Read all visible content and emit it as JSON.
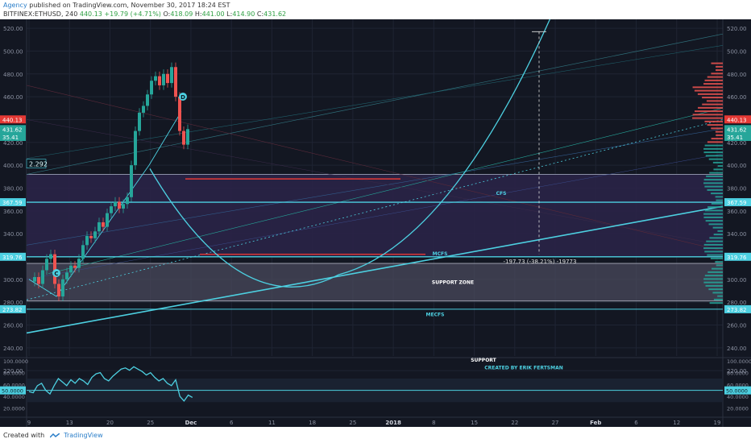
{
  "header": {
    "author": "Agency",
    "published": "published on TradingView.com, November 30, 2017 18:24 EST",
    "symbol": "BITFINEX:ETHUSD, 240",
    "last": "440.13",
    "change": "+19.79 (+4.71%)",
    "open_label": "O:",
    "open": "418.09",
    "high_label": "H:",
    "high": "441.00",
    "low_label": "L:",
    "low": "414.90",
    "close_label": "C:",
    "close": "431.62"
  },
  "footer": {
    "created_with": "Created with",
    "brand": "TradingView"
  },
  "colors": {
    "background": "#131722",
    "cyan": "#4dd0e1",
    "red": "#e53935",
    "green": "#26a69a",
    "purple_zone": "#2a2447",
    "support_zone": "#4a4a5c"
  },
  "chart_data": {
    "type": "candlestick",
    "symbol": "BITFINEX:ETHUSD",
    "interval": "240",
    "ylim": [
      230,
      525
    ],
    "y_ticks": [
      "520.00",
      "500.00",
      "480.00",
      "460.00",
      "440.00",
      "420.00",
      "400.00",
      "380.00",
      "360.00",
      "340.00",
      "320.00",
      "300.00",
      "280.00",
      "260.00",
      "240.00",
      "220.00"
    ],
    "x_ticks": [
      "9",
      "13",
      "20",
      "25",
      "Dec",
      "6",
      "11",
      "18",
      "25",
      "2018",
      "8",
      "15",
      "22",
      "27",
      "Feb",
      "6",
      "12",
      "19"
    ],
    "price_path": [
      [
        0,
        298
      ],
      [
        2,
        302
      ],
      [
        4,
        296
      ],
      [
        6,
        308
      ],
      [
        8,
        318
      ],
      [
        10,
        322
      ],
      [
        12,
        296
      ],
      [
        14,
        285
      ],
      [
        16,
        300
      ],
      [
        18,
        306
      ],
      [
        20,
        312
      ],
      [
        22,
        310
      ],
      [
        24,
        318
      ],
      [
        26,
        330
      ],
      [
        28,
        338
      ],
      [
        30,
        336
      ],
      [
        32,
        342
      ],
      [
        34,
        350
      ],
      [
        36,
        346
      ],
      [
        38,
        358
      ],
      [
        40,
        364
      ],
      [
        42,
        368
      ],
      [
        44,
        362
      ],
      [
        46,
        366
      ],
      [
        48,
        372
      ],
      [
        50,
        400
      ],
      [
        52,
        430
      ],
      [
        54,
        446
      ],
      [
        56,
        452
      ],
      [
        58,
        462
      ],
      [
        60,
        474
      ],
      [
        62,
        478
      ],
      [
        64,
        470
      ],
      [
        66,
        480
      ],
      [
        68,
        472
      ],
      [
        70,
        486
      ],
      [
        72,
        460
      ],
      [
        74,
        430
      ],
      [
        76,
        418
      ],
      [
        78,
        431.62
      ]
    ],
    "price_labels": [
      {
        "value": "440.13",
        "color": "#e53935",
        "y": 440.13
      },
      {
        "value": "431.62",
        "color": "#26a69a",
        "y": 431.62
      },
      {
        "value": "35.41",
        "color": "#26a69a",
        "y": 424.8
      },
      {
        "value": "367.59",
        "color": "#4dd0e1",
        "y": 367.59
      },
      {
        "value": "319.76",
        "color": "#4dd0e1",
        "y": 319.76
      },
      {
        "value": "273.82",
        "color": "#4dd0e1",
        "y": 273.82
      }
    ],
    "level_labels": [
      {
        "text": "CFS",
        "y": 376
      },
      {
        "text": "MCFS",
        "y": 323
      },
      {
        "text": "SUPPORT ZONE",
        "y": 298
      },
      {
        "text": "MECFS",
        "y": 270
      },
      {
        "text": "SUPPORT",
        "y": 230
      }
    ],
    "point_labels": [
      {
        "text": "D",
        "y": 447
      },
      {
        "text": "C",
        "y": 283
      }
    ],
    "measure_label": "-197.73 (-38.21%) -19773",
    "value_badge": "2.292",
    "oscillator": {
      "y_ticks": [
        "100.0000",
        "80.0000",
        "60.0000",
        "40.0000",
        "20.0000"
      ],
      "level_label": "50.0000",
      "level": 50,
      "values": [
        48,
        46,
        58,
        62,
        50,
        44,
        58,
        70,
        64,
        58,
        68,
        62,
        70,
        66,
        60,
        72,
        78,
        80,
        70,
        66,
        74,
        80,
        86,
        88,
        84,
        90,
        86,
        82,
        76,
        80,
        72,
        66,
        70,
        62,
        58,
        68,
        40,
        32,
        42,
        38
      ],
      "annotation": "CREATED BY ERIK FERTSMAN"
    }
  }
}
